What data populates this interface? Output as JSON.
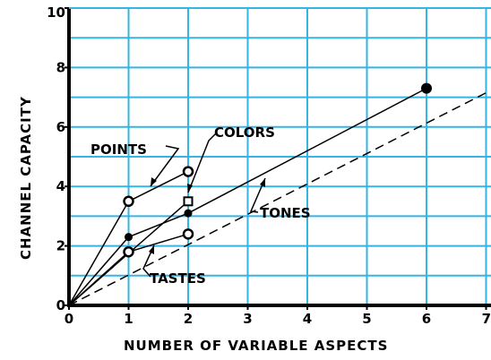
{
  "chart_data": {
    "type": "line",
    "title": "",
    "xlabel": "NUMBER OF VARIABLE ASPECTS",
    "ylabel": "CHANNEL CAPACITY",
    "xlim": [
      0,
      7
    ],
    "ylim": [
      0,
      10
    ],
    "x_ticks": [
      "0",
      "1",
      "2",
      "3",
      "4",
      "5",
      "6",
      "7"
    ],
    "y_ticks": [
      "0",
      "2",
      "4",
      "6",
      "8",
      "10"
    ],
    "grid": true,
    "grid_color": "#33b5e5",
    "series": [
      {
        "name": "POINTS",
        "x": [
          0,
          1,
          2
        ],
        "y": [
          0,
          3.5,
          4.5
        ],
        "marker": "open-circle"
      },
      {
        "name": "COLORS",
        "x": [
          0,
          2
        ],
        "y": [
          0,
          3.5
        ],
        "marker": "open-square"
      },
      {
        "name": "TONES",
        "x": [
          0,
          1,
          2,
          6
        ],
        "y": [
          0,
          2.3,
          3.1,
          7.3
        ],
        "marker": "filled-circle"
      },
      {
        "name": "TASTES",
        "x": [
          0,
          1,
          2
        ],
        "y": [
          0,
          1.8,
          2.4
        ],
        "marker": "open-circle"
      }
    ],
    "trend_line": {
      "style": "dashed",
      "x": [
        0,
        7
      ],
      "y": [
        0,
        7.15
      ]
    },
    "annotations": [
      {
        "text": "POINTS",
        "series": "POINTS"
      },
      {
        "text": "COLORS",
        "series": "COLORS"
      },
      {
        "text": "TONES",
        "series": "TONES"
      },
      {
        "text": "TASTES",
        "series": "TASTES"
      }
    ]
  }
}
